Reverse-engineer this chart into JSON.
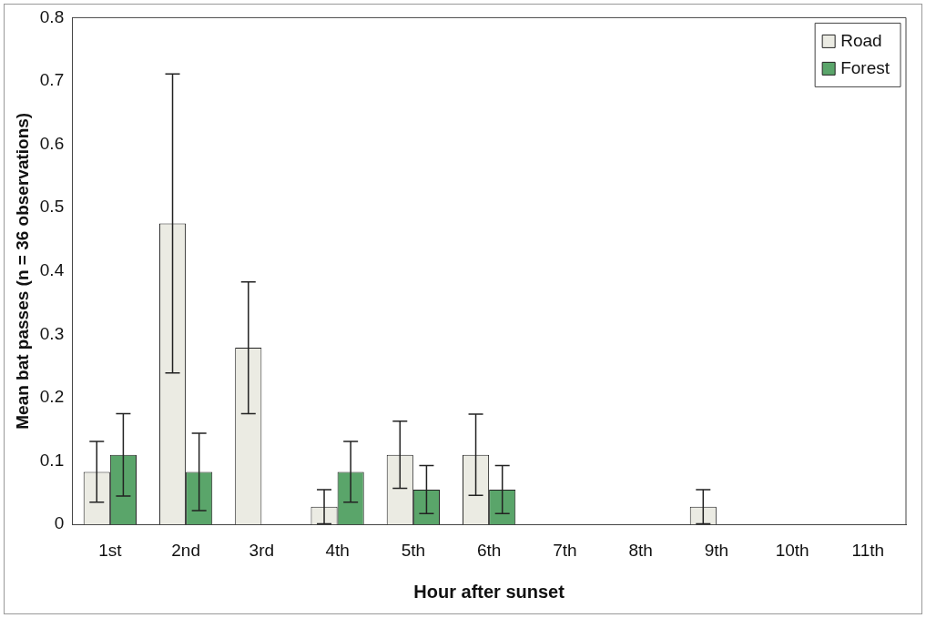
{
  "chart_data": {
    "type": "bar",
    "xlabel": "Hour after sunset",
    "ylabel": "Mean bat passes (n = 36 observations)",
    "categories": [
      "1st",
      "2nd",
      "3rd",
      "4th",
      "5th",
      "6th",
      "7th",
      "8th",
      "9th",
      "10th",
      "11th"
    ],
    "series": [
      {
        "name": "Road",
        "color": "#ebebe3",
        "values": [
          0.083,
          0.475,
          0.279,
          0.028,
          0.11,
          0.11,
          0,
          0,
          0.028,
          0,
          0
        ],
        "errors": [
          0.048,
          0.236,
          0.104,
          0.027,
          0.053,
          0.064,
          null,
          null,
          0.027,
          null,
          null
        ]
      },
      {
        "name": "Forest",
        "color": "#5aa56a",
        "values": [
          0.11,
          0.083,
          0,
          0.083,
          0.055,
          0.055,
          0,
          0,
          0,
          0,
          0
        ],
        "errors": [
          0.065,
          0.061,
          null,
          0.048,
          0.038,
          0.038,
          null,
          null,
          null,
          null,
          null
        ]
      }
    ],
    "ylim": [
      0,
      0.8
    ],
    "yticks": [
      0,
      0.1,
      0.2,
      0.3,
      0.4,
      0.5,
      0.6,
      0.7,
      0.8
    ],
    "grid": false,
    "legend": "top right"
  }
}
